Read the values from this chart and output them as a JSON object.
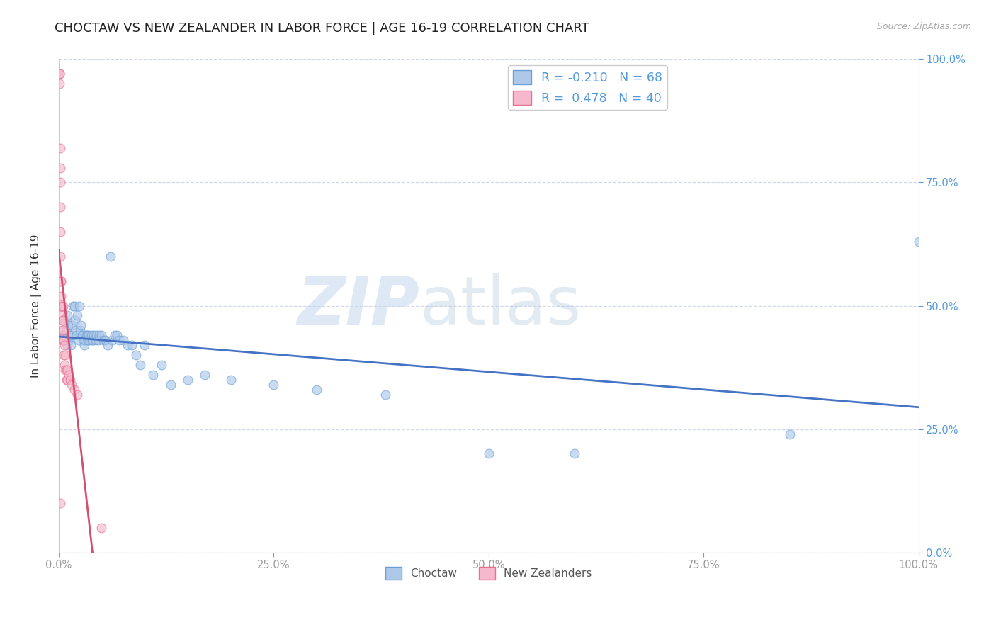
{
  "title": "CHOCTAW VS NEW ZEALANDER IN LABOR FORCE | AGE 16-19 CORRELATION CHART",
  "source": "Source: ZipAtlas.com",
  "ylabel": "In Labor Force | Age 16-19",
  "watermark_zip": "ZIP",
  "watermark_atlas": "atlas",
  "choctaw_R": -0.21,
  "choctaw_N": 68,
  "nz_R": 0.478,
  "nz_N": 40,
  "choctaw_color": "#adc8e8",
  "choctaw_edge_color": "#6a9fd8",
  "choctaw_line_color": "#4472c4",
  "nz_color": "#f5b8cc",
  "nz_edge_color": "#e87090",
  "nz_line_color": "#d45070",
  "right_tick_color": "#5599dd",
  "grid_color": "#d0d8e8",
  "background_color": "#ffffff",
  "choctaw_x": [
    0.005,
    0.007,
    0.008,
    0.009,
    0.01,
    0.01,
    0.011,
    0.012,
    0.013,
    0.014,
    0.015,
    0.016,
    0.017,
    0.018,
    0.019,
    0.02,
    0.021,
    0.022,
    0.023,
    0.024,
    0.025,
    0.026,
    0.027,
    0.028,
    0.029,
    0.03,
    0.031,
    0.032,
    0.033,
    0.034,
    0.035,
    0.036,
    0.038,
    0.039,
    0.04,
    0.041,
    0.043,
    0.044,
    0.046,
    0.047,
    0.05,
    0.052,
    0.055,
    0.057,
    0.06,
    0.062,
    0.065,
    0.068,
    0.07,
    0.075,
    0.08,
    0.085,
    0.09,
    0.095,
    0.1,
    0.11,
    0.12,
    0.13,
    0.15,
    0.17,
    0.2,
    0.25,
    0.3,
    0.38,
    0.5,
    0.6,
    0.85,
    1.0
  ],
  "choctaw_y": [
    0.44,
    0.44,
    0.47,
    0.45,
    0.48,
    0.42,
    0.46,
    0.43,
    0.44,
    0.42,
    0.44,
    0.46,
    0.5,
    0.5,
    0.47,
    0.45,
    0.44,
    0.48,
    0.43,
    0.5,
    0.45,
    0.46,
    0.44,
    0.44,
    0.43,
    0.42,
    0.43,
    0.44,
    0.44,
    0.43,
    0.44,
    0.43,
    0.44,
    0.43,
    0.43,
    0.44,
    0.43,
    0.44,
    0.43,
    0.44,
    0.44,
    0.43,
    0.43,
    0.42,
    0.6,
    0.43,
    0.44,
    0.44,
    0.43,
    0.43,
    0.42,
    0.42,
    0.4,
    0.38,
    0.42,
    0.36,
    0.38,
    0.34,
    0.35,
    0.36,
    0.35,
    0.34,
    0.33,
    0.32,
    0.2,
    0.2,
    0.24,
    0.63
  ],
  "nz_x": [
    0.001,
    0.001,
    0.001,
    0.001,
    0.002,
    0.002,
    0.002,
    0.002,
    0.002,
    0.002,
    0.003,
    0.003,
    0.003,
    0.003,
    0.003,
    0.004,
    0.004,
    0.004,
    0.004,
    0.005,
    0.005,
    0.005,
    0.005,
    0.006,
    0.006,
    0.007,
    0.007,
    0.008,
    0.008,
    0.009,
    0.009,
    0.01,
    0.01,
    0.012,
    0.013,
    0.015,
    0.018,
    0.022,
    0.05,
    0.002
  ],
  "nz_y": [
    0.97,
    0.97,
    0.97,
    0.95,
    0.82,
    0.78,
    0.75,
    0.7,
    0.65,
    0.6,
    0.55,
    0.55,
    0.52,
    0.5,
    0.48,
    0.5,
    0.47,
    0.45,
    0.43,
    0.5,
    0.47,
    0.45,
    0.43,
    0.43,
    0.4,
    0.42,
    0.38,
    0.4,
    0.37,
    0.37,
    0.35,
    0.37,
    0.35,
    0.36,
    0.35,
    0.34,
    0.33,
    0.32,
    0.05,
    0.1
  ],
  "xlim": [
    0.0,
    1.0
  ],
  "ylim": [
    0.0,
    1.0
  ],
  "xticks": [
    0.0,
    0.25,
    0.5,
    0.75,
    1.0
  ],
  "xtick_labels": [
    "0.0%",
    "25.0%",
    "50.0%",
    "75.0%",
    "100.0%"
  ],
  "yticks": [
    0.0,
    0.25,
    0.5,
    0.75,
    1.0
  ],
  "ytick_labels_right": [
    "0.0%",
    "25.0%",
    "50.0%",
    "75.0%",
    "100.0%"
  ],
  "title_fontsize": 13,
  "axis_label_fontsize": 11,
  "tick_fontsize": 10.5,
  "marker_size": 85,
  "marker_alpha": 0.65
}
